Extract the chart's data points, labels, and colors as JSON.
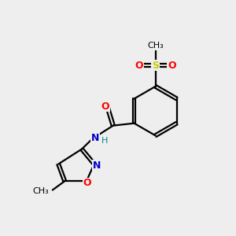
{
  "bg_color": "#eeeeee",
  "atom_colors": {
    "C": "#000000",
    "N": "#0000cc",
    "O": "#ff0000",
    "S": "#cccc00",
    "H": "#008888"
  },
  "bond_color": "#000000",
  "figsize": [
    3.0,
    3.0
  ],
  "dpi": 100
}
